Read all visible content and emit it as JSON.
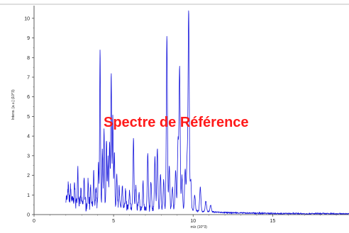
{
  "chart_data": {
    "type": "line",
    "xlabel": "m/z (10^3)",
    "ylabel": "Intens. [a.u.] (10^3)",
    "xlim": [
      0,
      19.8
    ],
    "ylim": [
      0,
      10.5
    ],
    "x_ticks": [
      0,
      5,
      10,
      15
    ],
    "y_ticks": [
      0,
      1,
      2,
      3,
      4,
      5,
      6,
      7,
      8,
      9,
      10
    ],
    "grid": false,
    "line_color": "#1a1adc",
    "overlay_text": "Spectre de Référence",
    "overlay_color": "#ff1a1a",
    "x_start": 2.0,
    "baseline": [
      [
        2.0,
        0.85
      ],
      [
        2.5,
        0.7
      ],
      [
        3.0,
        0.55
      ],
      [
        4.0,
        0.45
      ],
      [
        5.0,
        0.4
      ],
      [
        6.0,
        0.35
      ],
      [
        7.0,
        0.3
      ],
      [
        8.0,
        0.27
      ],
      [
        9.0,
        0.25
      ],
      [
        10.0,
        0.2
      ],
      [
        11.0,
        0.15
      ],
      [
        12.0,
        0.1
      ],
      [
        14.0,
        0.07
      ],
      [
        16.0,
        0.05
      ],
      [
        19.8,
        0.04
      ]
    ],
    "peaks": [
      {
        "x": 2.15,
        "y": 1.5
      },
      {
        "x": 2.3,
        "y": 1.3
      },
      {
        "x": 2.55,
        "y": 1.6
      },
      {
        "x": 2.75,
        "y": 2.5
      },
      {
        "x": 2.95,
        "y": 1.3
      },
      {
        "x": 3.15,
        "y": 2.0
      },
      {
        "x": 3.4,
        "y": 1.8
      },
      {
        "x": 3.55,
        "y": 1.4
      },
      {
        "x": 3.75,
        "y": 2.1
      },
      {
        "x": 3.9,
        "y": 1.5
      },
      {
        "x": 4.05,
        "y": 2.6
      },
      {
        "x": 4.15,
        "y": 8.3
      },
      {
        "x": 4.3,
        "y": 3.3
      },
      {
        "x": 4.4,
        "y": 4.3
      },
      {
        "x": 4.55,
        "y": 4.0
      },
      {
        "x": 4.65,
        "y": 2.9
      },
      {
        "x": 4.75,
        "y": 3.6
      },
      {
        "x": 4.85,
        "y": 7.3
      },
      {
        "x": 4.95,
        "y": 5.0
      },
      {
        "x": 5.05,
        "y": 3.2
      },
      {
        "x": 5.2,
        "y": 2.0
      },
      {
        "x": 5.35,
        "y": 1.4
      },
      {
        "x": 5.55,
        "y": 1.5
      },
      {
        "x": 5.75,
        "y": 1.3
      },
      {
        "x": 6.0,
        "y": 1.2
      },
      {
        "x": 6.25,
        "y": 4.0
      },
      {
        "x": 6.4,
        "y": 1.4
      },
      {
        "x": 6.6,
        "y": 1.2
      },
      {
        "x": 6.85,
        "y": 1.6
      },
      {
        "x": 7.15,
        "y": 3.2
      },
      {
        "x": 7.35,
        "y": 1.7
      },
      {
        "x": 7.6,
        "y": 2.9
      },
      {
        "x": 7.75,
        "y": 3.4
      },
      {
        "x": 7.95,
        "y": 2.0
      },
      {
        "x": 8.15,
        "y": 1.8
      },
      {
        "x": 8.35,
        "y": 9.1
      },
      {
        "x": 8.5,
        "y": 2.5
      },
      {
        "x": 8.7,
        "y": 1.4
      },
      {
        "x": 8.9,
        "y": 2.3
      },
      {
        "x": 9.05,
        "y": 3.7
      },
      {
        "x": 9.15,
        "y": 7.5
      },
      {
        "x": 9.3,
        "y": 2.0
      },
      {
        "x": 9.5,
        "y": 2.3
      },
      {
        "x": 9.62,
        "y": 2.8
      },
      {
        "x": 9.72,
        "y": 10.4
      },
      {
        "x": 9.85,
        "y": 1.8
      },
      {
        "x": 10.1,
        "y": 1.0
      },
      {
        "x": 10.45,
        "y": 1.4
      },
      {
        "x": 10.8,
        "y": 0.7
      },
      {
        "x": 11.1,
        "y": 0.5
      }
    ]
  }
}
